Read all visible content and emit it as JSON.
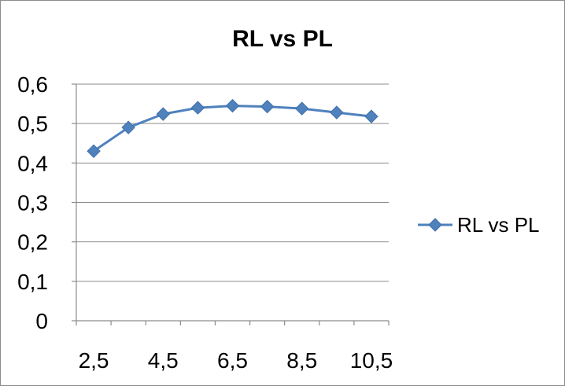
{
  "chart_data": {
    "type": "line",
    "title": "RL vs PL",
    "xlabel": "",
    "ylabel": "",
    "categories": [
      "2,5",
      "3,5",
      "4,5",
      "5,5",
      "6,5",
      "7,5",
      "8,5",
      "9,5",
      "10,5"
    ],
    "x_tick_labels": [
      "2,5",
      "4,5",
      "6,5",
      "8,5",
      "10,5"
    ],
    "y_tick_labels": [
      "0",
      "0,1",
      "0,2",
      "0,3",
      "0,4",
      "0,5",
      "0,6"
    ],
    "ylim": [
      0,
      0.6
    ],
    "grid": true,
    "legend_position": "right",
    "series": [
      {
        "name": "RL vs PL",
        "values": [
          0.43,
          0.49,
          0.524,
          0.54,
          0.545,
          0.543,
          0.538,
          0.528,
          0.518
        ],
        "color": "#4f81bd",
        "marker": "diamond"
      }
    ]
  }
}
